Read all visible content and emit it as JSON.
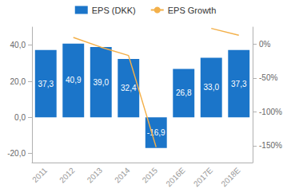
{
  "chart_data": {
    "type": "bar",
    "categories": [
      "2011",
      "2012",
      "2013",
      "2014",
      "2015",
      "2016E",
      "2017E",
      "2018E"
    ],
    "series": [
      {
        "name": "EPS (DKK)",
        "type": "bar",
        "color": "#1b75c9",
        "values": [
          37.3,
          40.9,
          39.0,
          32.4,
          -16.9,
          26.8,
          33.0,
          37.3
        ],
        "value_labels": [
          "37,3",
          "40,9",
          "39,0",
          "32,4",
          "-16,9",
          "26,8",
          "33,0",
          "37,3"
        ]
      },
      {
        "name": "EPS Growth",
        "type": "line",
        "axis": "y2",
        "color": "#f3b04a",
        "values": [
          null,
          9.7,
          -4.6,
          -16.9,
          -152.2,
          null,
          23.1,
          13.0
        ]
      }
    ],
    "ylim": [
      -25,
      50
    ],
    "yticks": [
      {
        "value": -20,
        "label": "-20,0"
      },
      {
        "value": 0,
        "label": "0,0"
      },
      {
        "value": 20,
        "label": "20,0"
      },
      {
        "value": 40,
        "label": "40,0"
      }
    ],
    "y2lim": [
      -175,
      25
    ],
    "y2ticks": [
      {
        "value": -150,
        "label": "-150%"
      },
      {
        "value": -100,
        "label": "-100%"
      },
      {
        "value": -50,
        "label": "-50%"
      },
      {
        "value": 0,
        "label": "0%"
      }
    ],
    "grid": false,
    "legend": "top",
    "data_labels": true
  }
}
